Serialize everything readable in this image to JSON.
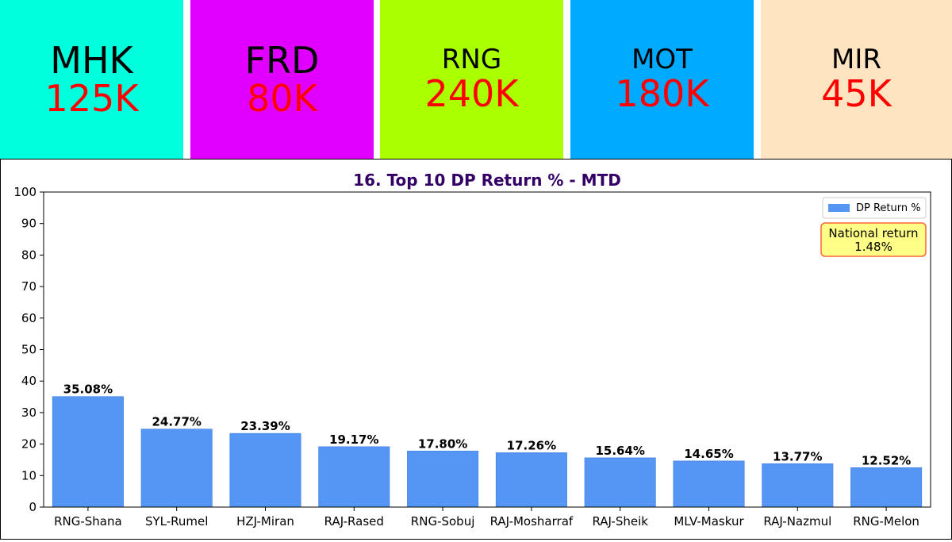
{
  "tiles": [
    {
      "code": "MHK",
      "value": "125K",
      "color": "#00ffdd"
    },
    {
      "code": "FRD",
      "value": "80K",
      "color": "#e100ff"
    },
    {
      "code": "RNG",
      "value": "240K",
      "color": "#aaff00"
    },
    {
      "code": "MOT",
      "value": "180K",
      "color": "#00aaff"
    },
    {
      "code": "MIR",
      "value": "45K",
      "color": "#ffe4c2"
    }
  ],
  "chart_data": {
    "type": "bar",
    "title": "16. Top 10 DP Return % - MTD",
    "categories": [
      "RNG-Shana",
      "SYL-Rumel",
      "HZJ-Miran",
      "RAJ-Rased",
      "RNG-Sobuj",
      "RAJ-Mosharraf",
      "RAJ-Sheik",
      "MLV-Maskur",
      "RAJ-Nazmul",
      "RNG-Melon"
    ],
    "series": [
      {
        "name": "DP Return %",
        "values": [
          35.08,
          24.77,
          23.39,
          19.17,
          17.8,
          17.26,
          15.64,
          14.65,
          13.77,
          12.52
        ],
        "color": "#5596f5"
      }
    ],
    "data_labels": [
      "35.08%",
      "24.77%",
      "23.39%",
      "19.17%",
      "17.80%",
      "17.26%",
      "15.64%",
      "14.65%",
      "13.77%",
      "12.52%"
    ],
    "yticks": [
      0,
      10,
      20,
      30,
      40,
      50,
      60,
      70,
      80,
      90,
      100
    ],
    "ylim": [
      0,
      100
    ],
    "xlabel": "",
    "ylabel": "",
    "grid": false,
    "legend": "top-right",
    "title_color": "#330066",
    "annotation": {
      "line1": "National return",
      "line2": "1.48%",
      "bg": "#ffff88",
      "border": "#ff6633"
    }
  }
}
